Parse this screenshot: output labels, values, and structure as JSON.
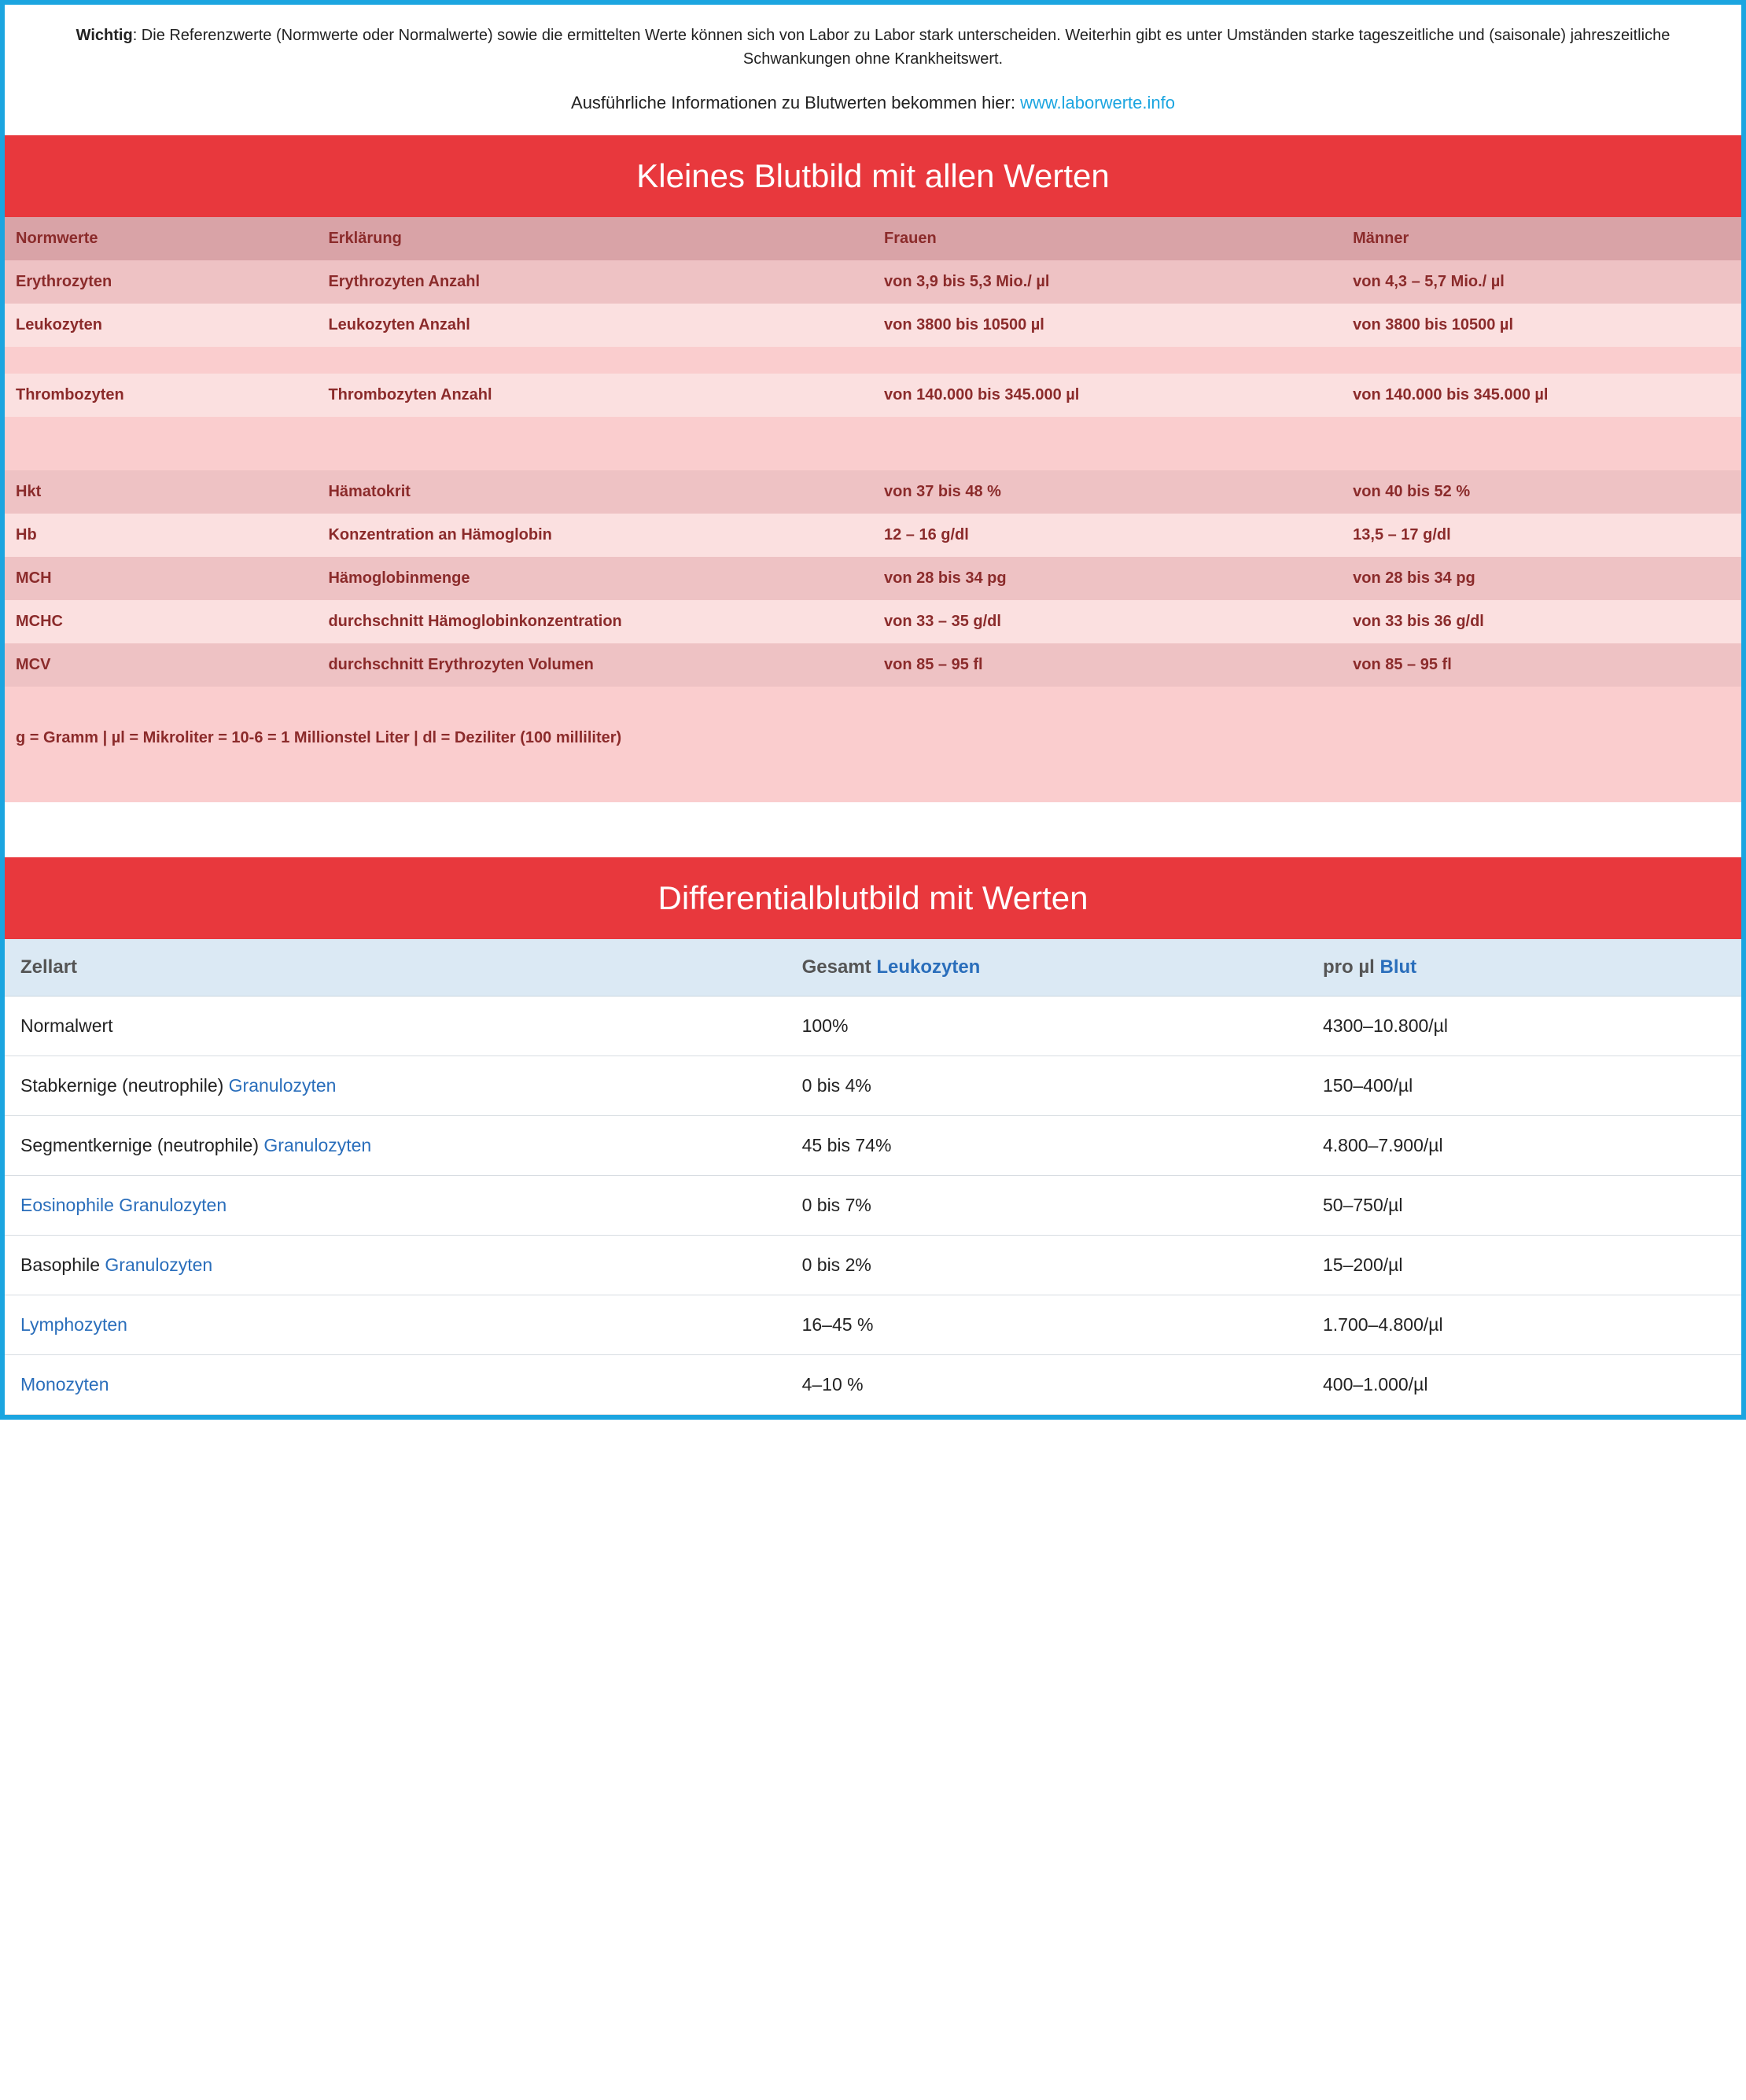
{
  "intro": {
    "bold_label": "Wichtig",
    "text": ": Die Referenzwerte (Normwerte oder Normalwerte) sowie die ermittelten Werte können sich von Labor zu Labor stark unterscheiden. Weiterhin gibt es unter Umständen starke tageszeitliche und (saisonale) jahreszeitliche Schwankungen ohne Krankheitswert."
  },
  "info_line": {
    "prefix": "Ausführliche Informationen zu Blutwerten bekommen hier: ",
    "link_text": "www.laborwerte.info"
  },
  "table1": {
    "banner": "Kleines Blutbild mit allen Werten",
    "headers": {
      "c0": "Normwerte",
      "c1": "Erklärung",
      "c2": "Frauen",
      "c3": "Männer"
    },
    "rows": [
      {
        "c0": "Erythrozyten",
        "c1": "Erythrozyten Anzahl",
        "c2": "von 3,9 bis 5,3 Mio./ µl",
        "c3": "von 4,3 – 5,7 Mio./ µl"
      },
      {
        "c0": "Leukozyten",
        "c1": "Leukozyten Anzahl",
        "c2": "von 3800 bis 10500 µl",
        "c3": "von 3800 bis 10500 µl"
      }
    ],
    "rows2": [
      {
        "c0": "Thrombozyten",
        "c1": "Thrombozyten Anzahl",
        "c2": "von 140.000 bis 345.000 µl",
        "c3": "von 140.000 bis 345.000 µl"
      }
    ],
    "rows3": [
      {
        "c0": "Hkt",
        "c1": "Hämatokrit",
        "c2": "von 37 bis 48 %",
        "c3": "von 40 bis 52 %"
      },
      {
        "c0": "Hb",
        "c1": "Konzentration an Hämoglobin",
        "c2": "12 – 16 g/dl",
        "c3": "13,5 – 17 g/dl"
      },
      {
        "c0": "MCH",
        "c1": "Hämoglobinmenge",
        "c2": "von 28 bis 34 pg",
        "c3": "von 28 bis 34 pg"
      },
      {
        "c0": "MCHC",
        "c1": "durchschnitt Hämoglobinkonzentration",
        "c2": "von 33 – 35 g/dl",
        "c3": "von 33 bis 36 g/dl"
      },
      {
        "c0": "MCV",
        "c1": "durchschnitt Erythrozyten Volumen",
        "c2": "von 85 – 95 fl",
        "c3": "von 85 – 95 fl"
      }
    ],
    "legend": "g = Gramm | µl = Mikroliter = 10-6 = 1 Millionstel Liter | dl = Deziliter (100 milliliter)"
  },
  "table2": {
    "banner": "Differentialblutbild mit Werten",
    "headers": {
      "c0": "Zellart",
      "c1_pre": "Gesamt ",
      "c1_link": "Leukozyten",
      "c2_pre": "pro µl ",
      "c2_link": "Blut"
    },
    "rows": [
      {
        "c0_pre": "Normalwert",
        "c0_link": "",
        "c1": "100%",
        "c2": "4300–10.800/µl"
      },
      {
        "c0_pre": "Stabkernige (neutrophile) ",
        "c0_link": "Granulozyten",
        "c1": "0 bis 4%",
        "c2": "150–400/µl"
      },
      {
        "c0_pre": "Segmentkernige (neutrophile) ",
        "c0_link": "Granulozyten",
        "c1": "45 bis 74%",
        "c2": "4.800–7.900/µl"
      },
      {
        "c0_pre": "",
        "c0_link": "Eosinophile Granulozyten",
        "c1": "0 bis 7%",
        "c2": "50–750/µl"
      },
      {
        "c0_pre": "Basophile ",
        "c0_link": "Granulozyten",
        "c1": "0 bis 2%",
        "c2": "15–200/µl"
      },
      {
        "c0_pre": "",
        "c0_link": "Lymphozyten",
        "c1": "16–45 %",
        "c2": "1.700–4.800/µl"
      },
      {
        "c0_pre": "",
        "c0_link": "Monozyten",
        "c1": "4–10 %",
        "c2": "400–1.000/µl"
      }
    ]
  },
  "colors": {
    "border": "#1ba5e0",
    "banner_bg": "#e8383d",
    "t1_header_bg": "#d9a3a7",
    "t1_dark_bg": "#eec2c4",
    "t1_light_bg": "#fbe0e0",
    "t1_spacer_bg": "#facdce",
    "t1_text": "#8b2b2b",
    "t2_header_bg": "#dbe9f4",
    "link_color": "#2a6ebb"
  }
}
